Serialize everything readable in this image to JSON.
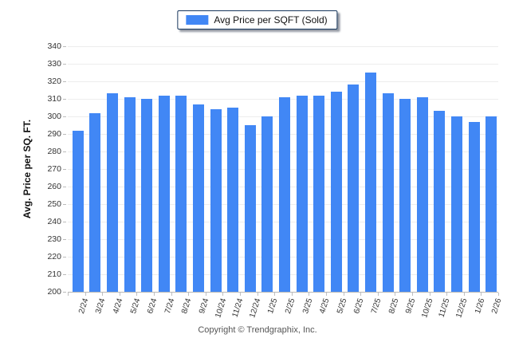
{
  "legend": {
    "label": "Avg Price per SQFT (Sold)"
  },
  "footer": {
    "text": "Copyright © Trendgraphix, Inc."
  },
  "colors": {
    "bar": "#4187f5",
    "legend_border": "#17375d",
    "gridline": "#ededed",
    "axis_line": "#b8b8b8",
    "tick_text": "#333333",
    "footer_text": "#555555"
  },
  "chart_data": {
    "type": "bar",
    "title": "",
    "xlabel": "",
    "ylabel": "Avg. Price per SQ. FT.",
    "ylim": [
      200,
      340
    ],
    "ytick_step": 10,
    "yticks": [
      200,
      210,
      220,
      230,
      240,
      250,
      260,
      270,
      280,
      290,
      300,
      310,
      320,
      330,
      340
    ],
    "grid": true,
    "legend_position": "top-center",
    "categories": [
      "2/24",
      "3/24",
      "4/24",
      "5/24",
      "6/24",
      "7/24",
      "8/24",
      "9/24",
      "10/24",
      "11/24",
      "12/24",
      "1/25",
      "2/25",
      "3/25",
      "4/25",
      "5/25",
      "6/25",
      "7/25",
      "8/25",
      "9/25",
      "10/25",
      "11/25",
      "12/25",
      "1/26",
      "2/26"
    ],
    "series": [
      {
        "name": "Avg Price per SQFT (Sold)",
        "color": "#4187f5",
        "values": [
          292,
          302,
          313,
          311,
          310,
          312,
          312,
          307,
          304,
          305,
          295,
          300,
          311,
          312,
          312,
          314,
          318,
          325,
          313,
          310,
          311,
          303,
          300,
          297,
          300
        ]
      }
    ]
  }
}
